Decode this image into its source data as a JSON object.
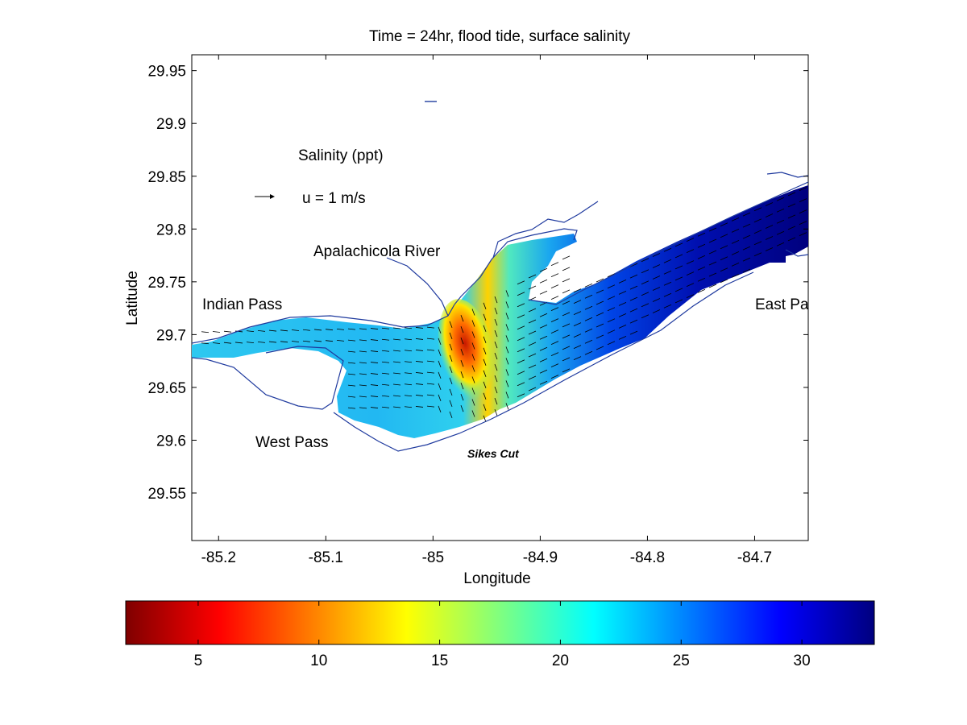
{
  "title": "Time = 24hr, flood tide, surface salinity",
  "axes": {
    "xlabel": "Longitude",
    "ylabel": "Latitude",
    "xlim": [
      -85.225,
      -84.65
    ],
    "ylim": [
      29.505,
      29.965
    ],
    "xticks": [
      -85.2,
      -85.1,
      -85.0,
      -84.9,
      -84.8,
      -84.7
    ],
    "xtick_labels": [
      "-85.2",
      "-85.1",
      "-85",
      "-84.9",
      "-84.8",
      "-84.7"
    ],
    "yticks": [
      29.55,
      29.6,
      29.65,
      29.7,
      29.75,
      29.8,
      29.85,
      29.9,
      29.95
    ],
    "ytick_labels": [
      "29.55",
      "29.6",
      "29.65",
      "29.7",
      "29.75",
      "29.8",
      "29.85",
      "29.9",
      "29.95"
    ]
  },
  "legend": {
    "variable": "Salinity (ppt)",
    "vector_scale": "u = 1 m/s"
  },
  "places": {
    "apalachicola_river": "Apalachicola River",
    "indian_pass": "Indian Pass",
    "east_pass": "East Pass",
    "west_pass": "West Pass",
    "sikes_cut": "Sikes Cut"
  },
  "colorbar": {
    "range": [
      2,
      33
    ],
    "ticks": [
      5,
      10,
      15,
      20,
      25,
      30
    ],
    "tick_labels": [
      "5",
      "10",
      "15",
      "20",
      "25",
      "30"
    ],
    "colormap": "jet (low = dark red, high = dark blue)"
  },
  "colors": {
    "coastline": "#1f3a9e",
    "frame": "#000000"
  },
  "chart_data": {
    "type": "heatmap",
    "title": "Time = 24hr, flood tide, surface salinity",
    "xlabel": "Longitude",
    "ylabel": "Latitude",
    "xlim": [
      -85.225,
      -84.65
    ],
    "ylim": [
      29.505,
      29.965
    ],
    "color_variable": "Salinity (ppt)",
    "color_range": [
      2,
      33
    ],
    "salinity_samples": [
      {
        "lon": -85.2,
        "lat": 29.693,
        "value": 20
      },
      {
        "lon": -85.1,
        "lat": 29.698,
        "value": 20
      },
      {
        "lon": -85.04,
        "lat": 29.66,
        "value": 21
      },
      {
        "lon": -84.98,
        "lat": 29.712,
        "value": 4
      },
      {
        "lon": -84.975,
        "lat": 29.69,
        "value": 10
      },
      {
        "lon": -84.96,
        "lat": 29.68,
        "value": 15
      },
      {
        "lon": -84.93,
        "lat": 29.66,
        "value": 21
      },
      {
        "lon": -84.94,
        "lat": 29.76,
        "value": 21
      },
      {
        "lon": -84.87,
        "lat": 29.7,
        "value": 28
      },
      {
        "lon": -84.75,
        "lat": 29.76,
        "value": 32
      },
      {
        "lon": -84.68,
        "lat": 29.81,
        "value": 33
      }
    ],
    "vector_scale": "u = 1 m/s",
    "colorbar_ticks": [
      5,
      10,
      15,
      20,
      25,
      30
    ],
    "grid": false
  }
}
